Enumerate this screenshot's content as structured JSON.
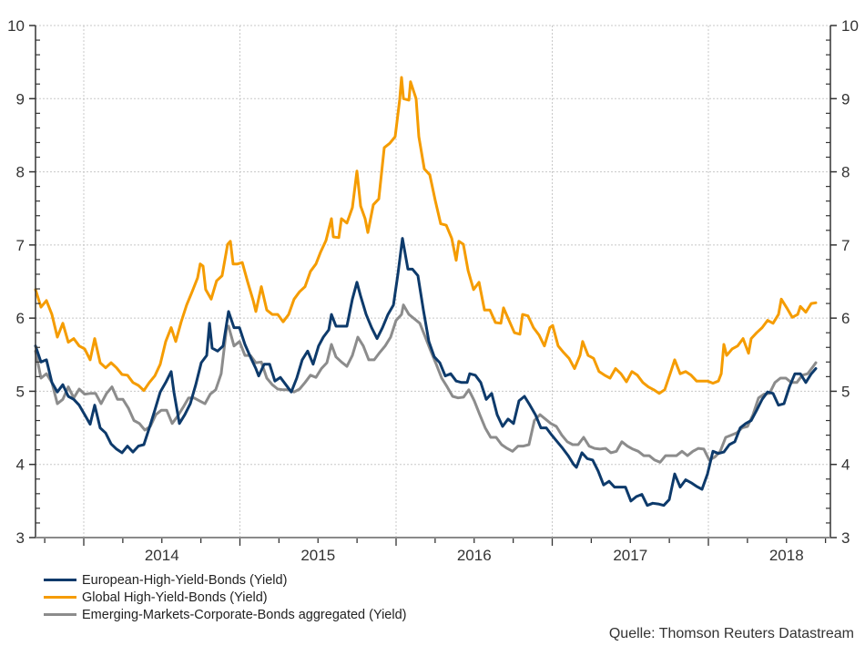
{
  "chart_data": {
    "type": "line",
    "title": "",
    "xlabel": "",
    "ylabel": "",
    "ylim": [
      3,
      10
    ],
    "xlim": [
      2013.69,
      2018.74
    ],
    "yticks": [
      "3",
      "4",
      "5",
      "6",
      "7",
      "8",
      "9",
      "10"
    ],
    "xtick_labels": [
      {
        "label": "2014",
        "year": 2014
      },
      {
        "label": "2015",
        "year": 2015
      },
      {
        "label": "2016",
        "year": 2016
      },
      {
        "label": "2017",
        "year": 2017
      },
      {
        "label": "2018",
        "year": 2018
      }
    ],
    "grid": true,
    "legend_position": "bottom-left",
    "series": [
      {
        "name": "European-High-Yield-Bonds (Yield)",
        "color": "#0d3a6b",
        "x": [
          2013.691,
          2013.726,
          2013.761,
          2013.796,
          2013.831,
          2013.866,
          2013.901,
          2013.936,
          2013.971,
          2014.006,
          2014.041,
          2014.07,
          2014.105,
          2014.14,
          2014.175,
          2014.21,
          2014.245,
          2014.28,
          2014.315,
          2014.35,
          2014.385,
          2014.42,
          2014.455,
          2014.49,
          2014.525,
          2014.56,
          2014.577,
          2014.612,
          2014.647,
          2014.682,
          2014.717,
          2014.752,
          2014.787,
          2014.805,
          2014.822,
          2014.857,
          2014.892,
          2014.927,
          2014.962,
          2014.997,
          2015.032,
          2015.067,
          2015.102,
          2015.12,
          2015.155,
          2015.19,
          2015.224,
          2015.259,
          2015.294,
          2015.329,
          2015.364,
          2015.399,
          2015.434,
          2015.469,
          2015.504,
          2015.534,
          2015.569,
          2015.586,
          2015.615,
          2015.65,
          2015.685,
          2015.72,
          2015.749,
          2015.773,
          2015.808,
          2015.843,
          2015.878,
          2015.913,
          2015.948,
          2015.983,
          2016.012,
          2016.041,
          2016.076,
          2016.105,
          2016.14,
          2016.175,
          2016.21,
          2016.245,
          2016.28,
          2016.315,
          2016.35,
          2016.385,
          2016.42,
          2016.455,
          2016.472,
          2016.507,
          2016.542,
          2016.577,
          2016.612,
          2016.647,
          2016.682,
          2016.717,
          2016.752,
          2016.787,
          2016.822,
          2016.857,
          2016.892,
          2016.927,
          2016.962,
          2016.997,
          2017.032,
          2017.067,
          2017.102,
          2017.137,
          2017.155,
          2017.19,
          2017.224,
          2017.259,
          2017.294,
          2017.329,
          2017.364,
          2017.399,
          2017.434,
          2017.469,
          2017.504,
          2017.539,
          2017.574,
          2017.609,
          2017.644,
          2017.679,
          2017.714,
          2017.749,
          2017.784,
          2017.819,
          2017.854,
          2017.889,
          2017.924,
          2017.959,
          2017.994,
          2018.029,
          2018.064,
          2018.099,
          2018.134,
          2018.169,
          2018.204,
          2018.239,
          2018.274,
          2018.309,
          2018.344,
          2018.379,
          2018.414,
          2018.449,
          2018.484,
          2018.519,
          2018.554,
          2018.589,
          2018.624,
          2018.659,
          2018.688
        ],
        "values": [
          5.62,
          5.4,
          5.43,
          5.12,
          4.99,
          5.09,
          4.93,
          4.89,
          4.81,
          4.68,
          4.55,
          4.81,
          4.5,
          4.43,
          4.28,
          4.21,
          4.16,
          4.25,
          4.17,
          4.25,
          4.27,
          4.5,
          4.74,
          4.99,
          5.12,
          5.27,
          4.99,
          4.56,
          4.68,
          4.83,
          5.09,
          5.39,
          5.49,
          5.93,
          5.59,
          5.55,
          5.62,
          6.09,
          5.87,
          5.87,
          5.64,
          5.47,
          5.31,
          5.21,
          5.37,
          5.37,
          5.14,
          5.19,
          5.09,
          4.99,
          5.18,
          5.43,
          5.55,
          5.37,
          5.62,
          5.74,
          5.84,
          6.05,
          5.89,
          5.89,
          5.89,
          6.26,
          6.49,
          6.3,
          6.05,
          5.87,
          5.72,
          5.87,
          6.05,
          6.18,
          6.61,
          7.09,
          6.67,
          6.67,
          6.58,
          6.11,
          5.68,
          5.47,
          5.39,
          5.21,
          5.24,
          5.14,
          5.12,
          5.12,
          5.24,
          5.22,
          5.12,
          4.89,
          4.97,
          4.68,
          4.52,
          4.62,
          4.56,
          4.87,
          4.93,
          4.81,
          4.68,
          4.5,
          4.5,
          4.4,
          4.31,
          4.22,
          4.12,
          4.0,
          3.96,
          4.16,
          4.08,
          4.06,
          3.91,
          3.72,
          3.77,
          3.69,
          3.69,
          3.69,
          3.5,
          3.56,
          3.59,
          3.44,
          3.47,
          3.46,
          3.44,
          3.52,
          3.87,
          3.69,
          3.79,
          3.75,
          3.7,
          3.66,
          3.87,
          4.18,
          4.15,
          4.17,
          4.27,
          4.31,
          4.5,
          4.56,
          4.6,
          4.74,
          4.89,
          4.99,
          4.97,
          4.81,
          4.83,
          5.06,
          5.24,
          5.24,
          5.12,
          5.24,
          5.31
        ]
      },
      {
        "name": "Global High-Yield-Bonds (Yield)",
        "color": "#f59c00",
        "x": [
          2013.691,
          2013.726,
          2013.761,
          2013.796,
          2013.831,
          2013.866,
          2013.901,
          2013.936,
          2013.971,
          2014.006,
          2014.041,
          2014.07,
          2014.105,
          2014.14,
          2014.175,
          2014.21,
          2014.245,
          2014.28,
          2014.315,
          2014.35,
          2014.385,
          2014.42,
          2014.455,
          2014.49,
          2014.525,
          2014.56,
          2014.589,
          2014.624,
          2014.659,
          2014.694,
          2014.729,
          2014.746,
          2014.764,
          2014.781,
          2014.816,
          2014.851,
          2014.886,
          2014.921,
          2014.939,
          2014.956,
          2014.985,
          2015.015,
          2015.05,
          2015.085,
          2015.102,
          2015.137,
          2015.172,
          2015.207,
          2015.242,
          2015.277,
          2015.312,
          2015.347,
          2015.382,
          2015.417,
          2015.452,
          2015.487,
          2015.516,
          2015.551,
          2015.586,
          2015.598,
          2015.633,
          2015.65,
          2015.685,
          2015.72,
          2015.749,
          2015.773,
          2015.802,
          2015.819,
          2015.854,
          2015.889,
          2015.924,
          2015.959,
          2015.994,
          2016.023,
          2016.035,
          2016.047,
          2016.082,
          2016.093,
          2016.128,
          2016.146,
          2016.181,
          2016.216,
          2016.251,
          2016.286,
          2016.321,
          2016.356,
          2016.385,
          2016.402,
          2016.431,
          2016.461,
          2016.496,
          2016.531,
          2016.566,
          2016.601,
          2016.636,
          2016.671,
          2016.688,
          2016.723,
          2016.758,
          2016.793,
          2016.81,
          2016.845,
          2016.88,
          2016.915,
          2016.95,
          2016.985,
          2017.003,
          2017.038,
          2017.073,
          2017.108,
          2017.143,
          2017.178,
          2017.195,
          2017.23,
          2017.265,
          2017.3,
          2017.335,
          2017.37,
          2017.405,
          2017.44,
          2017.475,
          2017.51,
          2017.545,
          2017.58,
          2017.615,
          2017.65,
          2017.685,
          2017.72,
          2017.755,
          2017.784,
          2017.819,
          2017.854,
          2017.889,
          2017.924,
          2017.959,
          2017.994,
          2018.029,
          2018.064,
          2018.082,
          2018.099,
          2018.117,
          2018.152,
          2018.187,
          2018.222,
          2018.257,
          2018.274,
          2018.309,
          2018.344,
          2018.379,
          2018.414,
          2018.449,
          2018.467,
          2018.502,
          2018.537,
          2018.572,
          2018.589,
          2018.624,
          2018.659,
          2018.688
        ],
        "values": [
          6.39,
          6.15,
          6.24,
          6.05,
          5.74,
          5.93,
          5.67,
          5.72,
          5.62,
          5.58,
          5.43,
          5.72,
          5.39,
          5.32,
          5.39,
          5.32,
          5.23,
          5.22,
          5.12,
          5.08,
          5.01,
          5.12,
          5.21,
          5.37,
          5.68,
          5.87,
          5.68,
          5.95,
          6.18,
          6.36,
          6.55,
          6.74,
          6.71,
          6.39,
          6.26,
          6.51,
          6.58,
          7.01,
          7.05,
          6.74,
          6.74,
          6.76,
          6.49,
          6.24,
          6.09,
          6.43,
          6.11,
          6.05,
          6.05,
          5.95,
          6.05,
          6.26,
          6.36,
          6.43,
          6.64,
          6.74,
          6.9,
          7.06,
          7.36,
          7.11,
          7.1,
          7.36,
          7.3,
          7.51,
          8.01,
          7.53,
          7.36,
          7.17,
          7.55,
          7.63,
          8.33,
          8.39,
          8.48,
          8.98,
          9.29,
          9.0,
          8.98,
          9.23,
          9.0,
          8.48,
          8.04,
          7.96,
          7.61,
          7.29,
          7.27,
          7.09,
          6.79,
          7.05,
          7.01,
          6.65,
          6.39,
          6.49,
          6.11,
          6.11,
          5.94,
          5.93,
          6.14,
          5.97,
          5.8,
          5.78,
          6.05,
          6.03,
          5.87,
          5.77,
          5.62,
          5.87,
          5.9,
          5.62,
          5.53,
          5.45,
          5.31,
          5.49,
          5.68,
          5.49,
          5.45,
          5.27,
          5.22,
          5.18,
          5.31,
          5.24,
          5.13,
          5.27,
          5.22,
          5.12,
          5.06,
          5.02,
          4.97,
          5.02,
          5.24,
          5.43,
          5.24,
          5.27,
          5.22,
          5.14,
          5.14,
          5.14,
          5.11,
          5.14,
          5.24,
          5.64,
          5.49,
          5.58,
          5.62,
          5.72,
          5.52,
          5.72,
          5.8,
          5.87,
          5.97,
          5.93,
          6.05,
          6.26,
          6.14,
          6.01,
          6.05,
          6.16,
          6.08,
          6.2,
          6.21
        ]
      },
      {
        "name": "Emerging-Markets-Corporate-Bonds aggregated (Yield)",
        "color": "#8c8c8c",
        "x": [
          2013.691,
          2013.726,
          2013.761,
          2013.796,
          2013.831,
          2013.866,
          2013.901,
          2013.936,
          2013.971,
          2014.006,
          2014.041,
          2014.076,
          2014.111,
          2014.146,
          2014.181,
          2014.216,
          2014.251,
          2014.286,
          2014.321,
          2014.356,
          2014.391,
          2014.426,
          2014.461,
          2014.496,
          2014.531,
          2014.566,
          2014.601,
          2014.636,
          2014.671,
          2014.706,
          2014.741,
          2014.776,
          2014.81,
          2014.845,
          2014.88,
          2014.915,
          2014.927,
          2014.962,
          2014.997,
          2015.032,
          2015.067,
          2015.102,
          2015.137,
          2015.172,
          2015.207,
          2015.242,
          2015.277,
          2015.312,
          2015.347,
          2015.382,
          2015.417,
          2015.452,
          2015.487,
          2015.522,
          2015.557,
          2015.586,
          2015.615,
          2015.65,
          2015.685,
          2015.72,
          2015.755,
          2015.79,
          2015.825,
          2015.86,
          2015.895,
          2015.93,
          2015.965,
          2016.0,
          2016.035,
          2016.047,
          2016.082,
          2016.117,
          2016.152,
          2016.187,
          2016.222,
          2016.257,
          2016.292,
          2016.327,
          2016.362,
          2016.397,
          2016.432,
          2016.466,
          2016.501,
          2016.536,
          2016.571,
          2016.606,
          2016.641,
          2016.676,
          2016.711,
          2016.746,
          2016.781,
          2016.816,
          2016.851,
          2016.886,
          2016.921,
          2016.956,
          2016.991,
          2017.026,
          2017.061,
          2017.096,
          2017.131,
          2017.166,
          2017.201,
          2017.236,
          2017.271,
          2017.306,
          2017.341,
          2017.376,
          2017.411,
          2017.446,
          2017.481,
          2017.516,
          2017.551,
          2017.586,
          2017.621,
          2017.656,
          2017.691,
          2017.726,
          2017.761,
          2017.796,
          2017.831,
          2017.866,
          2017.901,
          2017.936,
          2017.971,
          2018.006,
          2018.041,
          2018.076,
          2018.111,
          2018.146,
          2018.181,
          2018.216,
          2018.251,
          2018.286,
          2018.321,
          2018.356,
          2018.391,
          2018.426,
          2018.461,
          2018.496,
          2018.531,
          2018.566,
          2018.601,
          2018.636,
          2018.671,
          2018.688
        ],
        "values": [
          5.55,
          5.18,
          5.24,
          5.12,
          4.83,
          4.89,
          5.06,
          4.91,
          5.03,
          4.96,
          4.97,
          4.97,
          4.83,
          4.97,
          5.06,
          4.89,
          4.89,
          4.77,
          4.6,
          4.56,
          4.47,
          4.52,
          4.68,
          4.74,
          4.74,
          4.56,
          4.66,
          4.78,
          4.91,
          4.91,
          4.87,
          4.83,
          4.96,
          5.02,
          5.24,
          5.87,
          5.89,
          5.62,
          5.68,
          5.49,
          5.49,
          5.39,
          5.4,
          5.18,
          5.09,
          5.03,
          5.02,
          5.02,
          4.99,
          5.03,
          5.12,
          5.22,
          5.19,
          5.31,
          5.39,
          5.64,
          5.47,
          5.4,
          5.34,
          5.49,
          5.74,
          5.62,
          5.43,
          5.43,
          5.53,
          5.62,
          5.74,
          5.97,
          6.05,
          6.18,
          6.05,
          5.99,
          5.93,
          5.74,
          5.55,
          5.37,
          5.18,
          5.06,
          4.93,
          4.91,
          4.92,
          5.02,
          4.87,
          4.68,
          4.5,
          4.37,
          4.37,
          4.27,
          4.22,
          4.18,
          4.25,
          4.25,
          4.27,
          4.6,
          4.68,
          4.62,
          4.56,
          4.52,
          4.4,
          4.31,
          4.27,
          4.27,
          4.37,
          4.25,
          4.22,
          4.21,
          4.22,
          4.16,
          4.18,
          4.31,
          4.25,
          4.21,
          4.18,
          4.12,
          4.12,
          4.06,
          4.03,
          4.12,
          4.12,
          4.12,
          4.18,
          4.12,
          4.18,
          4.22,
          4.21,
          4.06,
          4.1,
          4.18,
          4.37,
          4.4,
          4.43,
          4.5,
          4.52,
          4.68,
          4.91,
          4.96,
          4.97,
          5.12,
          5.18,
          5.18,
          5.12,
          5.12,
          5.22,
          5.24,
          5.34,
          5.39
        ]
      }
    ]
  },
  "legend": [
    {
      "label": "European-High-Yield-Bonds (Yield)",
      "color": "#0d3a6b"
    },
    {
      "label": "Global High-Yield-Bonds (Yield)",
      "color": "#f59c00"
    },
    {
      "label": "Emerging-Markets-Corporate-Bonds aggregated (Yield)",
      "color": "#8c8c8c"
    }
  ],
  "source": "Quelle: Thomson Reuters Datastream"
}
